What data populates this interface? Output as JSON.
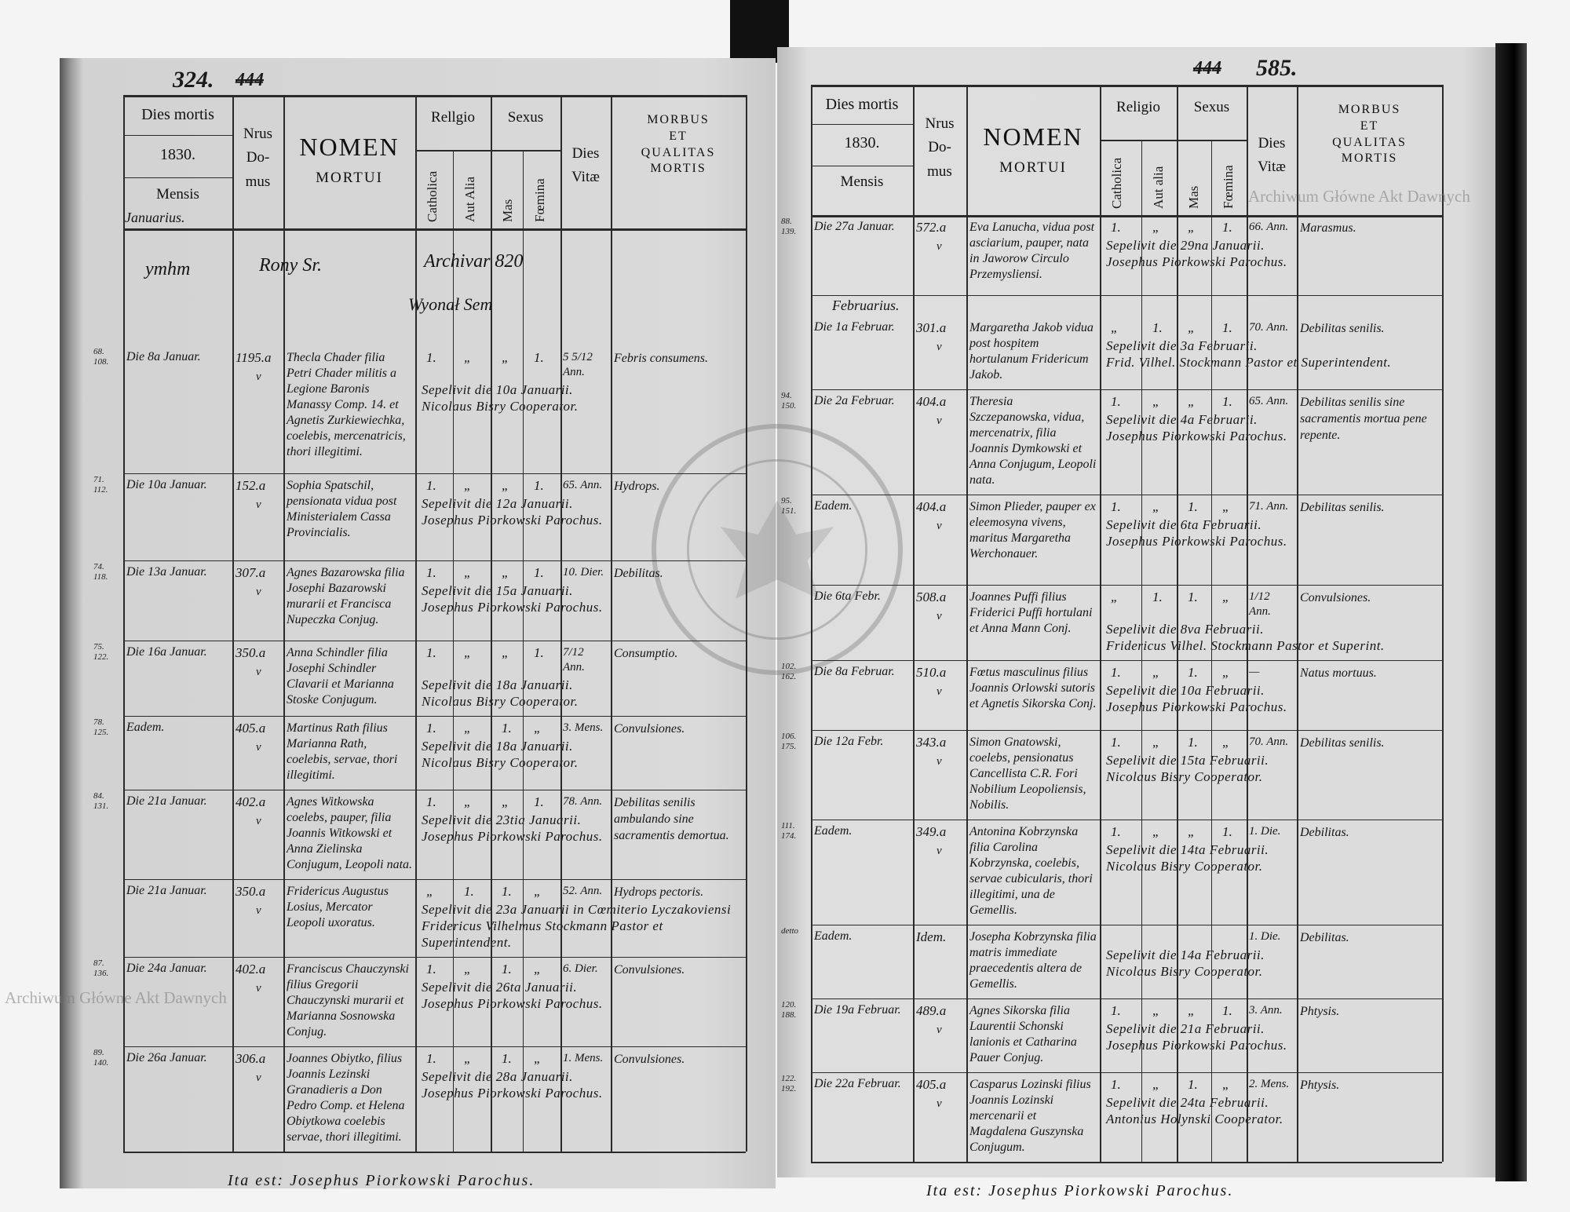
{
  "watermark": "Archiwum Główne Akt Dawnych",
  "stamp_text": "ARCHIWUM GŁÓWNE AKT DAWNYCH",
  "left_page": {
    "page_number": "324.",
    "struck_number": "444",
    "header": {
      "dies_mortis": "Dies mortis",
      "year": "1830.",
      "mensis": "Mensis",
      "month": "Januarius.",
      "nrus_domus": "Nrus\nDo-\nmus",
      "nomen": "NOMEN",
      "mortui": "MORTUI",
      "religio": "Rellgio",
      "catholica": "Catholica",
      "aut_alia": "Aut Alia",
      "sexus": "Sexus",
      "mas": "Mas",
      "foemina": "Fœmina",
      "dies_vitae": "Dies\nVitæ",
      "morbus": "MORBUS\nET\nQUALITAS\nMORTIS"
    },
    "annotation": {
      "a": "ymhm",
      "b": "Rony Sr.",
      "c": "Archivar 820",
      "d": "Wyonał Sem"
    },
    "entries": [
      {
        "index": "68.\n108.",
        "date": "Die 8a Januar.",
        "house": "1195.a",
        "check": "v",
        "name": "Thecla Chader filia Petri Chader militis a Legione Baronis Manassy Comp. 14. et Agnetis Zurkiewiechka, coelebis, mercenatricis, thori illegitimi.",
        "catholica": "1.",
        "aut_alia": "„",
        "mas": "„",
        "foemina": "1.",
        "age": "5 5/12 Ann.",
        "morbus": "Febris consumens.",
        "burial_1": "Sepelivit die 10a Januarii.",
        "burial_2": "Nicolaus Bisry Cooperator."
      },
      {
        "index": "71.\n112.",
        "date": "Die 10a Januar.",
        "house": "152.a",
        "check": "v",
        "name": "Sophia Spatschil, pensionata vidua post Ministerialem Cassa Provincialis.",
        "catholica": "1.",
        "aut_alia": "„",
        "mas": "„",
        "foemina": "1.",
        "age": "65. Ann.",
        "morbus": "Hydrops.",
        "burial_1": "Sepelivit die 12a Januarii.",
        "burial_2": "Josephus Piorkowski Parochus."
      },
      {
        "index": "74.\n118.",
        "date": "Die 13a Januar.",
        "house": "307.a",
        "check": "v",
        "name": "Agnes Bazarowska filia Josephi Bazarowski murarii et Francisca Nupeczka Conjug.",
        "catholica": "1.",
        "aut_alia": "„",
        "mas": "„",
        "foemina": "1.",
        "age": "10. Dier.",
        "morbus": "Debilitas.",
        "burial_1": "Sepelivit die 15a Januarii.",
        "burial_2": "Josephus Piorkowski Parochus."
      },
      {
        "index": "75.\n122.",
        "date": "Die 16a Januar.",
        "house": "350.a",
        "check": "v",
        "name": "Anna Schindler filia Josephi Schindler Clavarii et Marianna Stoske Conjugum.",
        "catholica": "1.",
        "aut_alia": "„",
        "mas": "„",
        "foemina": "1.",
        "age": "7/12 Ann.",
        "morbus": "Consumptio.",
        "burial_1": "Sepelivit die 18a Januarii.",
        "burial_2": "Nicolaus Bisry Cooperator."
      },
      {
        "index": "78.\n125.",
        "date": "Eadem.",
        "house": "405.a",
        "check": "v",
        "name": "Martinus Rath filius Marianna Rath, coelebis, servae, thori illegitimi.",
        "catholica": "1.",
        "aut_alia": "„",
        "mas": "1.",
        "foemina": "„",
        "age": "3. Mens.",
        "morbus": "Convulsiones.",
        "burial_1": "Sepelivit die 18a Januarii.",
        "burial_2": "Nicolaus Bisry Cooperator."
      },
      {
        "index": "84.\n131.",
        "date": "Die 21a Januar.",
        "house": "402.a",
        "check": "v",
        "name": "Agnes Witkowska coelebs, pauper, filia Joannis Witkowski et Anna Zielinska Conjugum, Leopoli nata.",
        "catholica": "1.",
        "aut_alia": "„",
        "mas": "„",
        "foemina": "1.",
        "age": "78. Ann.",
        "morbus": "Debilitas senilis ambulando sine sacramentis demortua.",
        "burial_1": "Sepelivit die 23tia Januarii.",
        "burial_2": "Josephus Piorkowski Parochus."
      },
      {
        "index": "",
        "date": "Die 21a Januar.",
        "house": "350.a",
        "check": "v",
        "name": "Fridericus Augustus Losius, Mercator Leopoli uxoratus.",
        "catholica": "„",
        "aut_alia": "1.",
        "mas": "1.",
        "foemina": "„",
        "age": "52. Ann.",
        "morbus": "Hydrops pectoris.",
        "burial_1": "Sepelivit die 23a Januarii in Cœmiterio Lyczakoviensi",
        "burial_2": "Fridericus Vilhelmus Stockmann Pastor et Superintendent."
      },
      {
        "index": "87.\n136.",
        "date": "Die 24a Januar.",
        "house": "402.a",
        "check": "v",
        "name": "Franciscus Chauczynski filius Gregorii Chauczynski murarii et Marianna Sosnowska Conjug.",
        "catholica": "1.",
        "aut_alia": "„",
        "mas": "1.",
        "foemina": "„",
        "age": "6. Dier.",
        "morbus": "Convulsiones.",
        "burial_1": "Sepelivit die 26ta Januarii.",
        "burial_2": "Josephus Piorkowski Parochus."
      },
      {
        "index": "89.\n140.",
        "date": "Die 26a Januar.",
        "house": "306.a",
        "check": "v",
        "name": "Joannes Obiytko, filius Joannis Lezinski Granadieris a Don Pedro Comp. et Helena Obiytkowa coelebis servae, thori illegitimi.",
        "catholica": "1.",
        "aut_alia": "„",
        "mas": "1.",
        "foemina": "„",
        "age": "1. Mens.",
        "morbus": "Convulsiones.",
        "burial_1": "Sepelivit die 28a Januarii.",
        "burial_2": "Josephus Piorkowski Parochus."
      }
    ],
    "footer": "Ita est: Josephus Piorkowski Parochus."
  },
  "right_page": {
    "page_number": "585.",
    "struck_number": "444",
    "header": {
      "dies_mortis": "Dies mortis",
      "year": "1830.",
      "mensis": "Mensis",
      "month": "",
      "nrus_domus": "Nrus\nDo-\nmus",
      "nomen": "NOMEN",
      "mortui": "MORTUI",
      "religio": "Religio",
      "catholica": "Catholica",
      "aut_alia": "Aut alia",
      "sexus": "Sexus",
      "mas": "Mas",
      "foemina": "Fœmina",
      "dies_vitae": "Dies\nVitæ",
      "morbus": "MORBUS\nET\nQUALITAS\nMORTIS"
    },
    "month_label": "Februarius.",
    "entries": [
      {
        "index": "88.\n139.",
        "date": "Die 27a Januar.",
        "house": "572.a",
        "check": "v",
        "name": "Eva Lanucha, vidua post asciarium, pauper, nata in Jaworow Circulo Przemysliensi.",
        "catholica": "1.",
        "aut_alia": "„",
        "mas": "„",
        "foemina": "1.",
        "age": "66. Ann.",
        "morbus": "Marasmus.",
        "burial_1": "Sepelivit die 29na Januarii.",
        "burial_2": "Josephus Piorkowski Parochus."
      },
      {
        "index": "",
        "date": "Die 1a Februar.",
        "house": "301.a",
        "check": "v",
        "name": "Margaretha Jakob vidua post hospitem hortulanum Fridericum Jakob.",
        "catholica": "„",
        "aut_alia": "1.",
        "mas": "„",
        "foemina": "1.",
        "age": "70. Ann.",
        "morbus": "Debilitas senilis.",
        "burial_1": "Sepelivit die 3a Februarii.",
        "burial_2": "Frid. Vilhel. Stockmann Pastor et Superintendent."
      },
      {
        "index": "94.\n150.",
        "date": "Die 2a Februar.",
        "house": "404.a",
        "check": "v",
        "name": "Theresia Szczepanowska, vidua, mercenatrix, filia Joannis Dymkowski et Anna Conjugum, Leopoli nata.",
        "catholica": "1.",
        "aut_alia": "„",
        "mas": "„",
        "foemina": "1.",
        "age": "65. Ann.",
        "morbus": "Debilitas senilis sine sacramentis mortua pene repente.",
        "burial_1": "Sepelivit die 4a Februarii.",
        "burial_2": "Josephus Piorkowski Parochus."
      },
      {
        "index": "95.\n151.",
        "date": "Eadem.",
        "house": "404.a",
        "check": "v",
        "name": "Simon Plieder, pauper ex eleemosyna vivens, maritus Margaretha Werchonauer.",
        "catholica": "1.",
        "aut_alia": "„",
        "mas": "1.",
        "foemina": "„",
        "age": "71. Ann.",
        "morbus": "Debilitas senilis.",
        "burial_1": "Sepelivit die 6ta Februarii.",
        "burial_2": "Josephus Piorkowski Parochus."
      },
      {
        "index": "",
        "date": "Die 6ta Febr.",
        "house": "508.a",
        "check": "v",
        "name": "Joannes Puffi filius Friderici Puffi hortulani et Anna Mann Conj.",
        "catholica": "„",
        "aut_alia": "1.",
        "mas": "1.",
        "foemina": "„",
        "age": "1/12 Ann.",
        "morbus": "Convulsiones.",
        "burial_1": "Sepelivit die 8va Februarii.",
        "burial_2": "Fridericus Vilhel. Stockmann Pastor et Superint."
      },
      {
        "index": "102.\n162.",
        "date": "Die 8a Februar.",
        "house": "510.a",
        "check": "v",
        "name": "Fœtus masculinus filius Joannis Orlowski sutoris et Agnetis Sikorska Conj.",
        "catholica": "1.",
        "aut_alia": "„",
        "mas": "1.",
        "foemina": "„",
        "age": "—",
        "morbus": "Natus mortuus.",
        "burial_1": "Sepelivit die 10a Februarii.",
        "burial_2": "Josephus Piorkowski Parochus."
      },
      {
        "index": "106.\n175.",
        "date": "Die 12a Febr.",
        "house": "343.a",
        "check": "v",
        "name": "Simon Gnatowski, coelebs, pensionatus Cancellista C.R. Fori Nobilium Leopoliensis, Nobilis.",
        "catholica": "1.",
        "aut_alia": "„",
        "mas": "1.",
        "foemina": "„",
        "age": "70. Ann.",
        "morbus": "Debilitas senilis.",
        "burial_1": "Sepelivit die 15ta Februarii.",
        "burial_2": "Nicolaus Bisry Cooperator."
      },
      {
        "index": "111.\n174.",
        "date": "Eadem.",
        "house": "349.a",
        "check": "v",
        "name": "Antonina Kobrzynska filia Carolina Kobrzynska, coelebis, servae cubicularis, thori illegitimi, una de Gemellis.",
        "catholica": "1.",
        "aut_alia": "„",
        "mas": "„",
        "foemina": "1.",
        "age": "1. Die.",
        "morbus": "Debilitas.",
        "burial_1": "Sepelivit die 14ta Februarii.",
        "burial_2": "Nicolaus Bisry Cooperator."
      },
      {
        "index": "detto",
        "date": "Eadem.",
        "house": "Idem.",
        "check": "",
        "name": "Josepha Kobrzynska filia matris immediate praecedentis altera de Gemellis.",
        "catholica": "",
        "aut_alia": "",
        "mas": "",
        "foemina": "",
        "age": "1. Die.",
        "morbus": "Debilitas.",
        "burial_1": "Sepelivit die 14a Februarii.",
        "burial_2": "Nicolaus Bisry Cooperator."
      },
      {
        "index": "120.\n188.",
        "date": "Die 19a Februar.",
        "house": "489.a",
        "check": "v",
        "name": "Agnes Sikorska filia Laurentii Schonski lanionis et Catharina Pauer Conjug.",
        "catholica": "1.",
        "aut_alia": "„",
        "mas": "„",
        "foemina": "1.",
        "age": "3. Ann.",
        "morbus": "Phtysis.",
        "burial_1": "Sepelivit die 21a Februarii.",
        "burial_2": "Josephus Piorkowski Parochus."
      },
      {
        "index": "122.\n192.",
        "date": "Die 22a Februar.",
        "house": "405.a",
        "check": "v",
        "name": "Casparus Lozinski filius Joannis Lozinski mercenarii et Magdalena Guszynska Conjugum.",
        "catholica": "1.",
        "aut_alia": "„",
        "mas": "1.",
        "foemina": "„",
        "age": "2. Mens.",
        "morbus": "Phtysis.",
        "burial_1": "Sepelivit die 24ta Februarii.",
        "burial_2": "Antonius Holynski Cooperator."
      }
    ],
    "footer": "Ita est: Josephus Piorkowski Parochus."
  }
}
